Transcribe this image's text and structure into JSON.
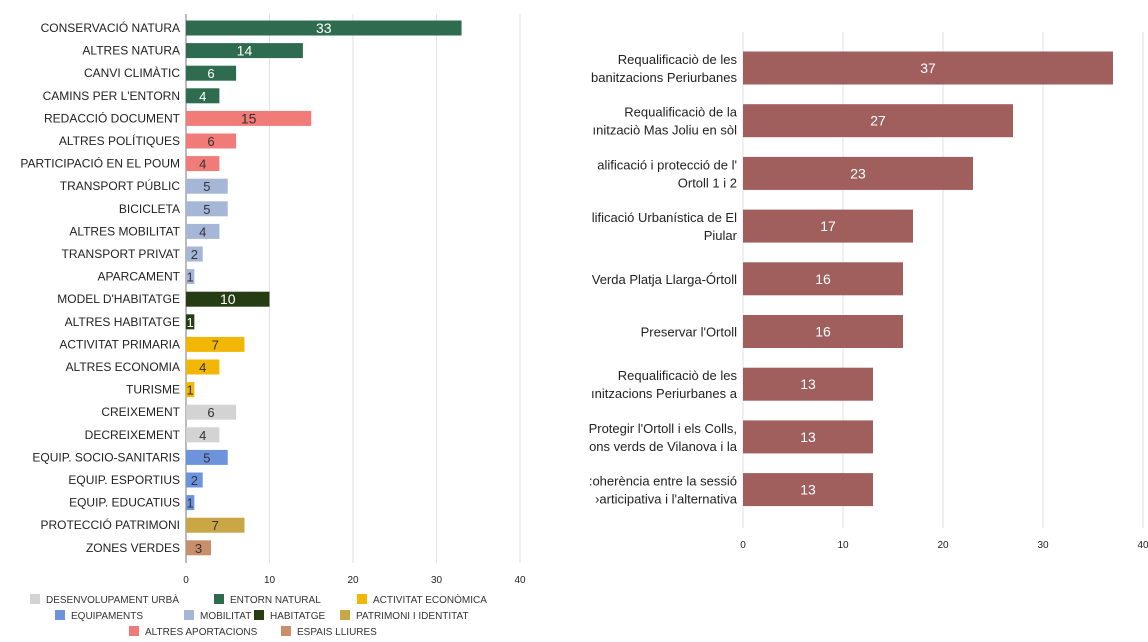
{
  "chart_data": [
    {
      "type": "bar",
      "orientation": "horizontal",
      "xlim": [
        0,
        40
      ],
      "x_ticks": [
        0,
        10,
        20,
        30,
        40
      ],
      "grid": true,
      "legend_position": "bottom",
      "categories": [
        "CONSERVACIÓ NATURA",
        "ALTRES NATURA",
        "CANVI CLIMÀTIC",
        "CAMINS PER L'ENTORN",
        "REDACCIÓ DOCUMENT",
        "ALTRES POLÍTIQUES",
        "PARTICIPACIÓ EN EL POUM",
        "TRANSPORT PÚBLIC",
        "BICICLETA",
        "ALTRES MOBILITAT",
        "TRANSPORT PRIVAT",
        "APARCAMENT",
        "MODEL D'HABITATGE",
        "ALTRES HABITATGE",
        "ACTIVITAT PRIMARIA",
        "ALTRES ECONOMIA",
        "TURISME",
        "CREIXEMENT",
        "DECREIXEMENT",
        "EQUIP. SOCIO-SANITARIS",
        "EQUIP. ESPORTIUS",
        "EQUIP. EDUCATIUS",
        "PROTECCIÓ PATRIMONI",
        "ZONES VERDES"
      ],
      "values": [
        33,
        14,
        6,
        4,
        15,
        6,
        4,
        5,
        5,
        4,
        2,
        1,
        10,
        1,
        7,
        4,
        1,
        6,
        4,
        5,
        2,
        1,
        7,
        3
      ],
      "groups": [
        "ENTORN NATURAL",
        "ENTORN NATURAL",
        "ENTORN NATURAL",
        "ENTORN NATURAL",
        "ALTRES APORTACIONS",
        "ALTRES APORTACIONS",
        "ALTRES APORTACIONS",
        "MOBILITAT",
        "MOBILITAT",
        "MOBILITAT",
        "MOBILITAT",
        "MOBILITAT",
        "HABITATGE",
        "HABITATGE",
        "ACTIVITAT ECONÒMICA",
        "ACTIVITAT ECONÒMICA",
        "ACTIVITAT ECONÒMICA",
        "DESENVOLUPAMENT URBÀ",
        "DESENVOLUPAMENT URBÀ",
        "EQUIPAMENTS",
        "EQUIPAMENTS",
        "EQUIPAMENTS",
        "PATRIMONI I IDENTITAT",
        "ESPAIS LLIURES"
      ],
      "legend": [
        {
          "name": "DESENVOLUPAMENT URBÀ",
          "color": "#d3d3d3"
        },
        {
          "name": "ENTORN NATURAL",
          "color": "#2e6b4f"
        },
        {
          "name": "ACTIVITAT ECONÒMICA",
          "color": "#f2b705"
        },
        {
          "name": "EQUIPAMENTS",
          "color": "#6d93dd"
        },
        {
          "name": "MOBILITAT",
          "color": "#a5b6d6"
        },
        {
          "name": "HABITATGE",
          "color": "#263d14"
        },
        {
          "name": "PATRIMONI I IDENTITAT",
          "color": "#c9a646"
        },
        {
          "name": "ALTRES APORTACIONS",
          "color": "#f07b78"
        },
        {
          "name": "ESPAIS LLIURES",
          "color": "#c98e6b"
        }
      ],
      "value_label_colors": {
        "ENTORN NATURAL": "#ffffff",
        "HABITATGE": "#ffffff",
        "DESENVOLUPAMENT URBÀ": "#333333",
        "ACTIVITAT ECONÒMICA": "#333333",
        "EQUIPAMENTS": "#333333",
        "MOBILITAT": "#333333",
        "PATRIMONI I IDENTITAT": "#333333",
        "ALTRES APORTACIONS": "#333333",
        "ESPAIS LLIURES": "#333333"
      }
    },
    {
      "type": "bar",
      "orientation": "horizontal",
      "xlim": [
        0,
        40
      ],
      "x_ticks": [
        0,
        10,
        20,
        30,
        40
      ],
      "grid": true,
      "bar_color": "#a05f5d",
      "categories": [
        [
          "Requalificaciò de les",
          "banitzacions Periurbanes"
        ],
        [
          "Requalificaciò de la",
          "ınitzaciò Mas Joliu en sòl"
        ],
        [
          "alificació i protecció de l'",
          "Ortoll 1 i 2"
        ],
        [
          "lificació Urbanística de El",
          "Piular"
        ],
        [
          "Verda Platja Llarga-Órtoll"
        ],
        [
          "Preservar l'Ortoll"
        ],
        [
          "Requalificaciò de les",
          "ınitzacions Periurbanes a"
        ],
        [
          "Protegir l'Ortoll i els Colls,",
          "ons verds de Vilanova i la"
        ],
        [
          ":oherència entre la sessió",
          "›articipativa i l'alternativa"
        ]
      ],
      "values": [
        37,
        27,
        23,
        17,
        16,
        16,
        13,
        13,
        13
      ]
    }
  ]
}
